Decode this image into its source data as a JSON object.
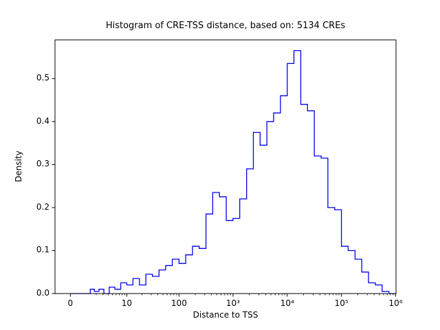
{
  "chart_data": {
    "type": "bar",
    "subtype": "histogram-step",
    "title": "Histogram of CRE-TSS distance, based on: 5134 CREs",
    "xlabel": "Distance to TSS",
    "ylabel": "Density",
    "x_scale": "symlog",
    "xlim": [
      0,
      1000000
    ],
    "ylim": [
      0,
      0.59
    ],
    "grid": false,
    "legend": "none",
    "line_color": "#0000ee",
    "axis_color": "#000000",
    "x_ticks": [
      {
        "value": 0,
        "label": "0"
      },
      {
        "value": 10,
        "label": "10"
      },
      {
        "value": 100,
        "label": "100"
      },
      {
        "value": 1000,
        "label": "10³"
      },
      {
        "value": 10000,
        "label": "10⁴"
      },
      {
        "value": 100000,
        "label": "10⁵"
      },
      {
        "value": 1000000,
        "label": "10⁶"
      }
    ],
    "y_ticks": [
      {
        "value": 0.0,
        "label": "0.0"
      },
      {
        "value": 0.1,
        "label": "0.1"
      },
      {
        "value": 0.2,
        "label": "0.2"
      },
      {
        "value": 0.3,
        "label": "0.3"
      },
      {
        "value": 0.4,
        "label": "0.4"
      },
      {
        "value": 0.5,
        "label": "0.5"
      }
    ],
    "bin_edges": [
      0,
      1.33,
      1.78,
      2.37,
      3.16,
      4.22,
      5.62,
      7.5,
      10,
      13.3,
      17.8,
      23.7,
      31.6,
      42.2,
      56.2,
      75,
      100,
      133,
      178,
      237,
      316,
      422,
      562,
      750,
      1000,
      1330,
      1780,
      2370,
      3160,
      4220,
      5620,
      7500,
      10000,
      13300,
      17800,
      23700,
      31600,
      42200,
      56200,
      75000,
      100000,
      133000,
      178000,
      237000,
      316000,
      422000,
      562000,
      750000,
      1000000
    ],
    "densities": [
      0.0,
      0.01,
      0.005,
      0.01,
      0.0,
      0.015,
      0.01,
      0.025,
      0.02,
      0.035,
      0.02,
      0.045,
      0.04,
      0.055,
      0.065,
      0.08,
      0.07,
      0.09,
      0.11,
      0.105,
      0.185,
      0.235,
      0.225,
      0.17,
      0.175,
      0.22,
      0.29,
      0.375,
      0.345,
      0.4,
      0.42,
      0.46,
      0.535,
      0.565,
      0.44,
      0.425,
      0.32,
      0.315,
      0.2,
      0.195,
      0.11,
      0.1,
      0.08,
      0.05,
      0.025,
      0.02,
      0.005,
      0.0
    ]
  }
}
